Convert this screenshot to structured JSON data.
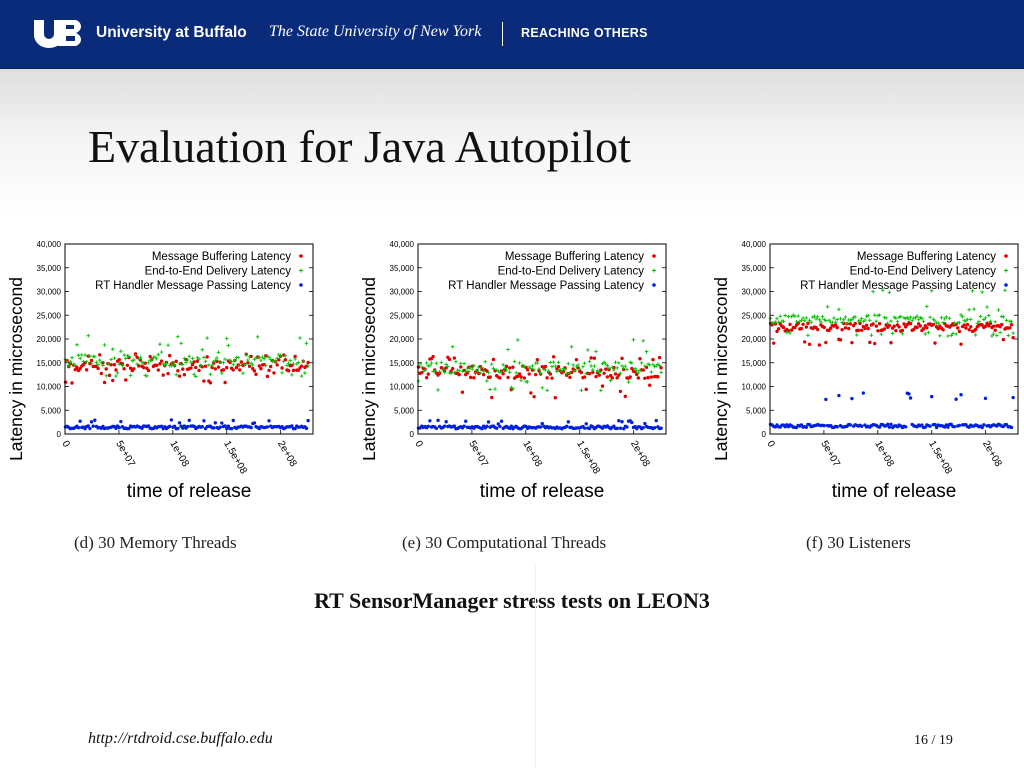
{
  "header": {
    "university": "University at Buffalo",
    "suny": "The State University of New York",
    "tagline": "REACHING OTHERS",
    "logo_icon": "ub-logo-icon",
    "banner_color": "#0a2a7a"
  },
  "slide": {
    "title": "Evaluation for Java Autopilot",
    "subtitle": "RT SensorManager stress tests on LEON3",
    "footer_url": "http://rtdroid.cse.buffalo.edu",
    "page_number": "16 / 19"
  },
  "chart_data": [
    {
      "type": "scatter",
      "caption": "(d) 30 Memory Threads",
      "xlabel": "time of release",
      "ylabel": "Latency in microsecond",
      "xlim": [
        0,
        230000000
      ],
      "ylim": [
        0,
        40000
      ],
      "xticks": [
        "0",
        "5e+07",
        "1e+08",
        "1.5e+08",
        "2e+08"
      ],
      "yticks": [
        "0",
        "5,000",
        "10,000",
        "15,000",
        "20,000",
        "25,000",
        "30,000",
        "35,000",
        "40,000"
      ],
      "legend_position": "top-right",
      "grid": false,
      "series": [
        {
          "name": "Message Buffering Latency",
          "color": "#e00000",
          "marker": "dot",
          "mean": 14500,
          "spread": 1200,
          "low_outliers": [
            11000,
            12500
          ],
          "high_outliers": [
            16500
          ]
        },
        {
          "name": "End-to-End Delivery Latency",
          "color": "#00c000",
          "marker": "plus",
          "mean": 15500,
          "spread": 1200,
          "low_outliers": [
            12500
          ],
          "high_outliers": [
            17500,
            19000,
            20500
          ]
        },
        {
          "name": "RT Handler Message Passing Latency",
          "color": "#0020e0",
          "marker": "dot",
          "mean": 1400,
          "spread": 300,
          "low_outliers": [],
          "high_outliers": [
            2600
          ]
        }
      ]
    },
    {
      "type": "scatter",
      "caption": "(e) 30 Computational Threads",
      "xlabel": "time of release",
      "ylabel": "Latency in microsecond",
      "xlim": [
        0,
        230000000
      ],
      "ylim": [
        0,
        40000
      ],
      "xticks": [
        "0",
        "5e+07",
        "1e+08",
        "1.5e+08",
        "2e+08"
      ],
      "yticks": [
        "0",
        "5,000",
        "10,000",
        "15,000",
        "20,000",
        "25,000",
        "30,000",
        "35,000",
        "40,000"
      ],
      "legend_position": "top-right",
      "grid": false,
      "series": [
        {
          "name": "Message Buffering Latency",
          "color": "#e00000",
          "marker": "dot",
          "mean": 13000,
          "spread": 1300,
          "low_outliers": [
            8000,
            9000,
            10000
          ],
          "high_outliers": [
            16000
          ]
        },
        {
          "name": "End-to-End Delivery Latency",
          "color": "#00c000",
          "marker": "plus",
          "mean": 14000,
          "spread": 1300,
          "low_outliers": [
            9500,
            11000
          ],
          "high_outliers": [
            17000,
            18000,
            19500
          ]
        },
        {
          "name": "RT Handler Message Passing Latency",
          "color": "#0020e0",
          "marker": "dot",
          "mean": 1400,
          "spread": 300,
          "low_outliers": [],
          "high_outliers": [
            2500
          ]
        }
      ]
    },
    {
      "type": "scatter",
      "caption": "(f) 30 Listeners",
      "xlabel": "time of release",
      "ylabel": "Latency in microsecond",
      "xlim": [
        0,
        230000000
      ],
      "ylim": [
        0,
        40000
      ],
      "xticks": [
        "0",
        "5e+07",
        "1e+08",
        "1.5e+08",
        "2e+08"
      ],
      "yticks": [
        "0",
        "5,000",
        "10,000",
        "15,000",
        "20,000",
        "25,000",
        "30,000",
        "35,000",
        "40,000"
      ],
      "legend_position": "top-right",
      "grid": false,
      "series": [
        {
          "name": "Message Buffering Latency",
          "color": "#e00000",
          "marker": "dot",
          "mean": 22500,
          "spread": 900,
          "low_outliers": [
            19000,
            20000
          ],
          "high_outliers": []
        },
        {
          "name": "End-to-End Delivery Latency",
          "color": "#00c000",
          "marker": "plus",
          "mean": 24200,
          "spread": 900,
          "low_outliers": [
            21000
          ],
          "high_outliers": [
            26500,
            30000
          ]
        },
        {
          "name": "RT Handler Message Passing Latency",
          "color": "#0020e0",
          "marker": "dot",
          "mean": 1700,
          "spread": 350,
          "low_outliers": [],
          "high_outliers": [
            7500,
            8300,
            8200
          ]
        }
      ]
    }
  ]
}
